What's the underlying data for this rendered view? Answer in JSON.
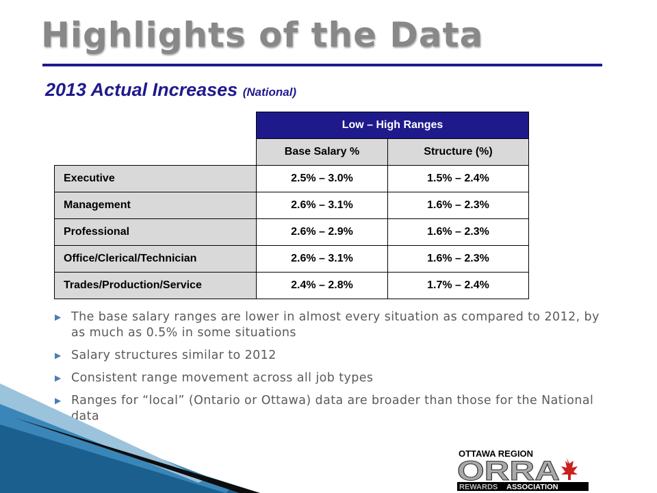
{
  "title": "Highlights of the Data",
  "subtitle": {
    "main": "2013 Actual Increases",
    "note": "(National)"
  },
  "table": {
    "group_header": "Low – High Ranges",
    "columns": [
      "Base Salary %",
      "Structure (%)"
    ],
    "rows": [
      {
        "label": "Executive",
        "base": "2.5% – 3.0%",
        "structure": "1.5% – 2.4%"
      },
      {
        "label": "Management",
        "base": "2.6% – 3.1%",
        "structure": "1.6% – 2.3%"
      },
      {
        "label": "Professional",
        "base": "2.6% – 2.9%",
        "structure": "1.6% – 2.3%"
      },
      {
        "label": "Office/Clerical/Technician",
        "base": "2.6% – 3.1%",
        "structure": "1.6% – 2.3%"
      },
      {
        "label": "Trades/Production/Service",
        "base": "2.4% – 2.8%",
        "structure": "1.7% – 2.4%"
      }
    ]
  },
  "bullets": [
    "The base salary ranges are lower in almost every situation as compared to 2012, by as much as 0.5% in some situations",
    "Salary structures similar to 2012",
    "Consistent range movement across all job types",
    "Ranges for “local” (Ontario or Ottawa) data are broader than those for the National data"
  ],
  "logo": {
    "top_text": "OTTAWA REGION",
    "main_text": "ORRA",
    "bottom_left": "REWARDS",
    "bottom_right": "ASSOCIATION"
  },
  "colors": {
    "accent_navy": "#1f1a8c",
    "title_gray": "#888888",
    "header_gray": "#d9d9d9",
    "bullet_blue": "#4a7db3",
    "swoosh_blue": "#1b5f8f"
  },
  "icons": {
    "bullet": "triangle-right-icon",
    "logo_leaf": "maple-leaf-icon"
  }
}
